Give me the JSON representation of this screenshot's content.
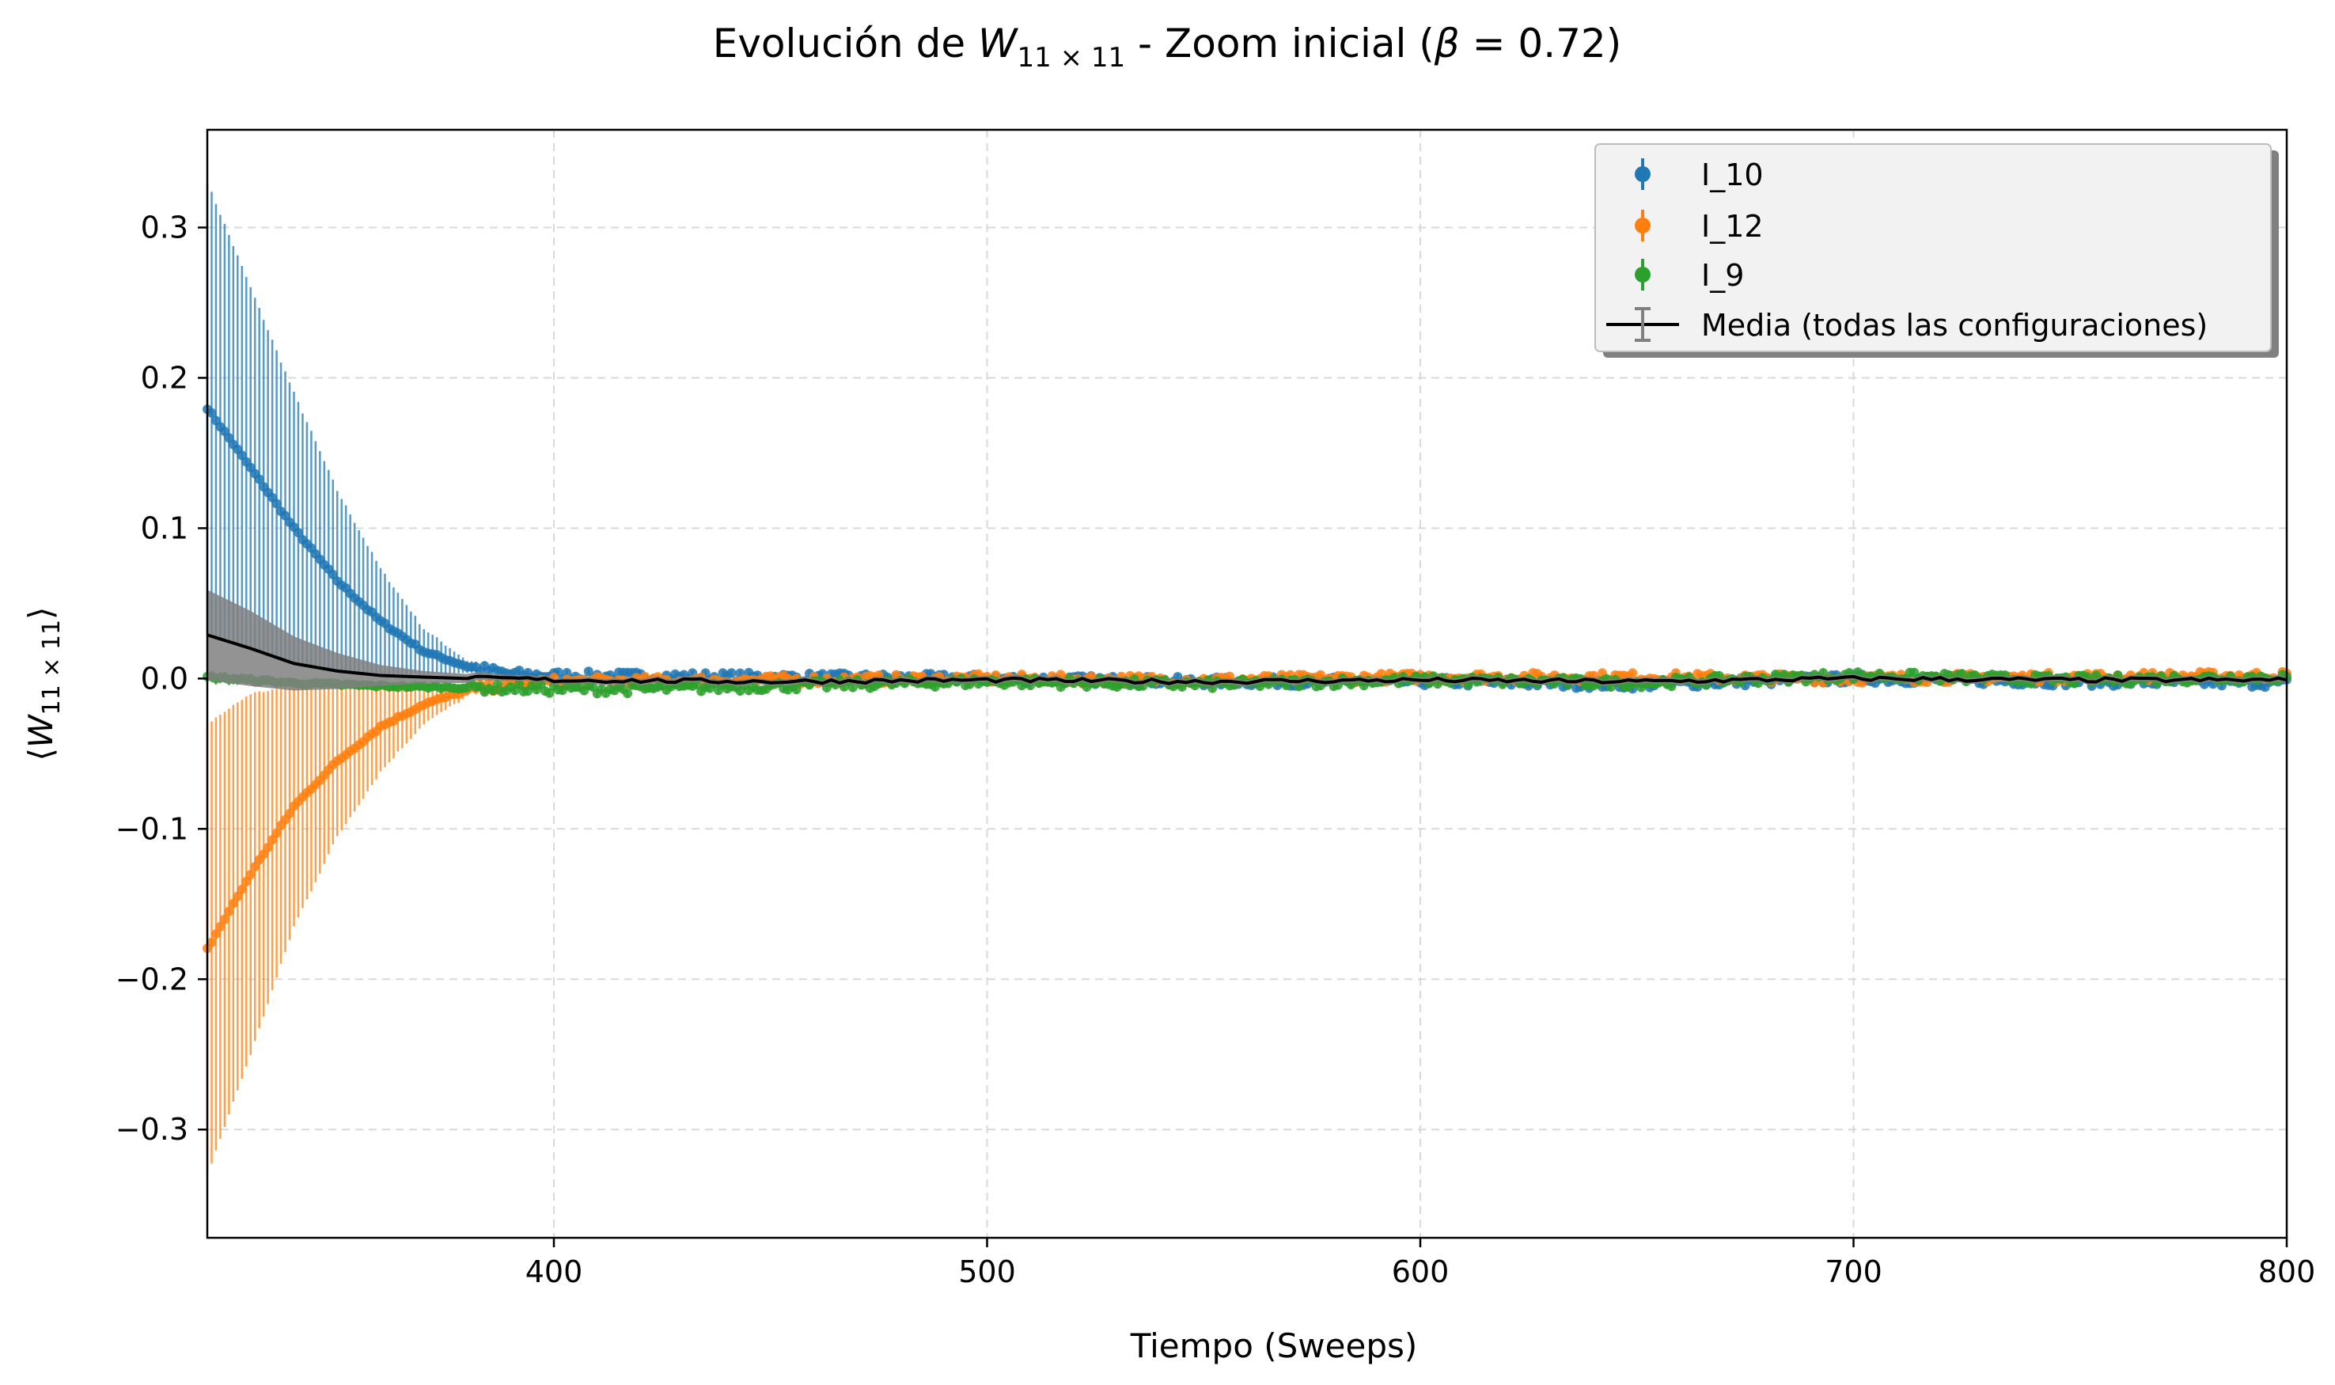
{
  "chart_data": {
    "type": "line",
    "title": {
      "prefix": "Evolución de ",
      "symbol": "W",
      "symbol_sub": "11 × 11",
      "middle": " - Zoom inicial (",
      "beta": "β",
      "beta_rest": " = 0.72)"
    },
    "xlabel": "Tiempo (Sweeps)",
    "ylabel": {
      "open": "⟨",
      "symbol": "W",
      "symbol_sub": "11 × 11",
      "close": "⟩"
    },
    "xlim": [
      320,
      800
    ],
    "ylim": [
      -0.372,
      0.365
    ],
    "x_ticks": [
      400,
      500,
      600,
      700,
      800
    ],
    "x_tick_labels": [
      "400",
      "500",
      "600",
      "700",
      "800"
    ],
    "y_ticks": [
      0.3,
      0.2,
      0.1,
      0.0,
      -0.1,
      -0.2,
      -0.3
    ],
    "y_tick_labels": [
      "0.3",
      "0.2",
      "0.1",
      "0.0",
      "−0.1",
      "−0.2",
      "−0.3"
    ],
    "grid": true,
    "legend_position": "top-right",
    "series": [
      {
        "name": "I_10",
        "color": "#1f77b4",
        "x": [
          320,
          330,
          340,
          350,
          360,
          370,
          380,
          390,
          400,
          450,
          500,
          550,
          600,
          650,
          700,
          750,
          800
        ],
        "values": [
          0.18,
          0.14,
          0.1,
          0.065,
          0.038,
          0.018,
          0.008,
          0.003,
          0.002,
          0.001,
          0.0,
          -0.002,
          -0.002,
          -0.004,
          0.0,
          -0.002,
          -0.003
        ],
        "errors": [
          0.15,
          0.12,
          0.09,
          0.06,
          0.035,
          0.015,
          0.004,
          0.002,
          0.002,
          0.002,
          0.002,
          0.002,
          0.002,
          0.002,
          0.002,
          0.002,
          0.002
        ]
      },
      {
        "name": "I_12",
        "color": "#ff7f0e",
        "x": [
          320,
          330,
          340,
          350,
          360,
          370,
          380,
          390,
          400,
          450,
          500,
          550,
          600,
          650,
          700,
          750,
          800
        ],
        "values": [
          -0.18,
          -0.13,
          -0.085,
          -0.055,
          -0.032,
          -0.017,
          -0.008,
          -0.004,
          -0.002,
          -0.001,
          0.0,
          -0.001,
          0.001,
          0.001,
          0.0,
          0.001,
          0.002
        ],
        "errors": [
          0.15,
          0.12,
          0.08,
          0.05,
          0.03,
          0.013,
          0.004,
          0.002,
          0.002,
          0.002,
          0.002,
          0.002,
          0.002,
          0.002,
          0.002,
          0.002,
          0.002
        ]
      },
      {
        "name": "I_9",
        "color": "#2ca02c",
        "x": [
          320,
          340,
          360,
          380,
          400,
          420,
          450,
          500,
          550,
          600,
          650,
          700,
          750,
          800
        ],
        "values": [
          0.001,
          -0.003,
          -0.005,
          -0.006,
          -0.007,
          -0.007,
          -0.005,
          -0.002,
          -0.004,
          -0.001,
          -0.003,
          0.002,
          -0.001,
          0.001
        ],
        "errors": [
          0.004,
          0.003,
          0.003,
          0.003,
          0.003,
          0.003,
          0.003,
          0.003,
          0.003,
          0.003,
          0.003,
          0.003,
          0.003,
          0.003
        ]
      },
      {
        "name": "Media (todas las configuraciones)",
        "color": "#000000",
        "band_color": "#808080",
        "x": [
          320,
          330,
          340,
          350,
          360,
          370,
          380,
          390,
          400,
          450,
          500,
          550,
          600,
          650,
          700,
          750,
          800
        ],
        "values": [
          0.029,
          0.02,
          0.01,
          0.005,
          0.002,
          0.001,
          0.0,
          0.0,
          -0.001,
          -0.002,
          -0.001,
          -0.002,
          -0.001,
          -0.002,
          0.0,
          -0.001,
          -0.001
        ],
        "errors": [
          0.03,
          0.025,
          0.018,
          0.012,
          0.007,
          0.004,
          0.003,
          0.002,
          0.002,
          0.002,
          0.002,
          0.002,
          0.002,
          0.002,
          0.002,
          0.002,
          0.002
        ]
      }
    ]
  }
}
